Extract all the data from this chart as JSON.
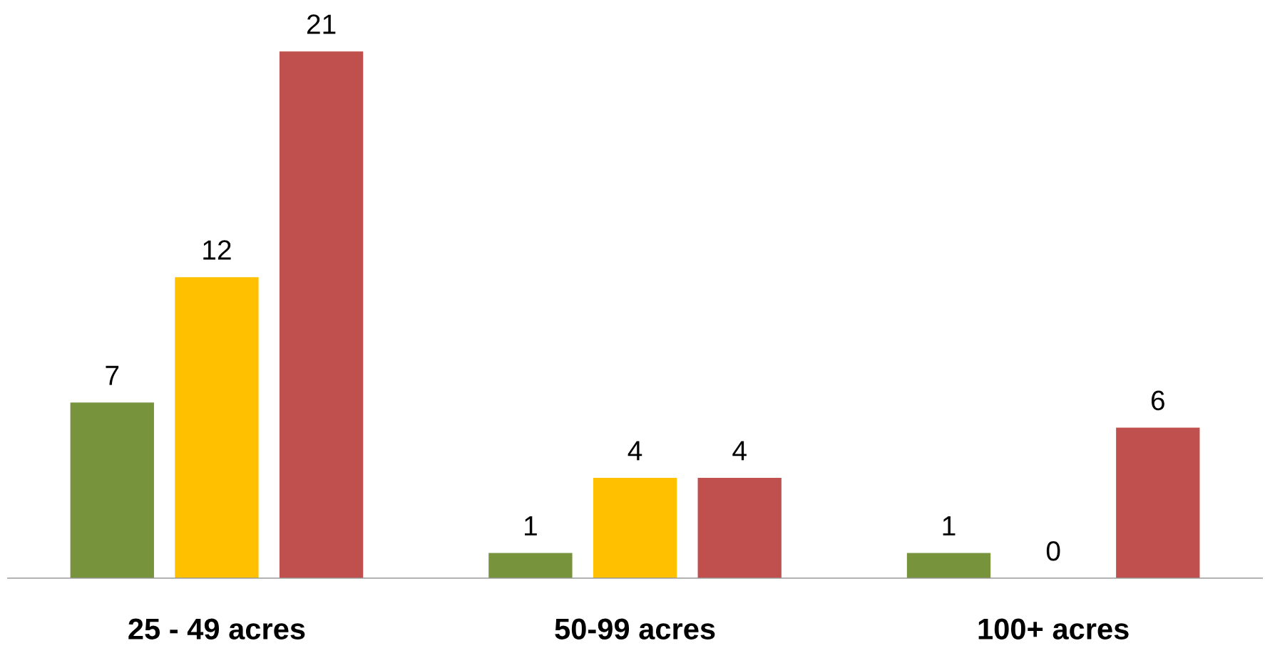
{
  "chart_data": {
    "type": "bar",
    "categories": [
      "25 - 49 acres",
      "50-99 acres",
      "100+ acres"
    ],
    "series": [
      {
        "color": "#77933c",
        "values": [
          7,
          1,
          1
        ]
      },
      {
        "color": "#ffc000",
        "values": [
          12,
          4,
          0
        ]
      },
      {
        "color": "#c0504d",
        "values": [
          21,
          4,
          6
        ]
      }
    ],
    "tick_labels": "x",
    "data_labels": true,
    "grid": false,
    "legend": false
  }
}
